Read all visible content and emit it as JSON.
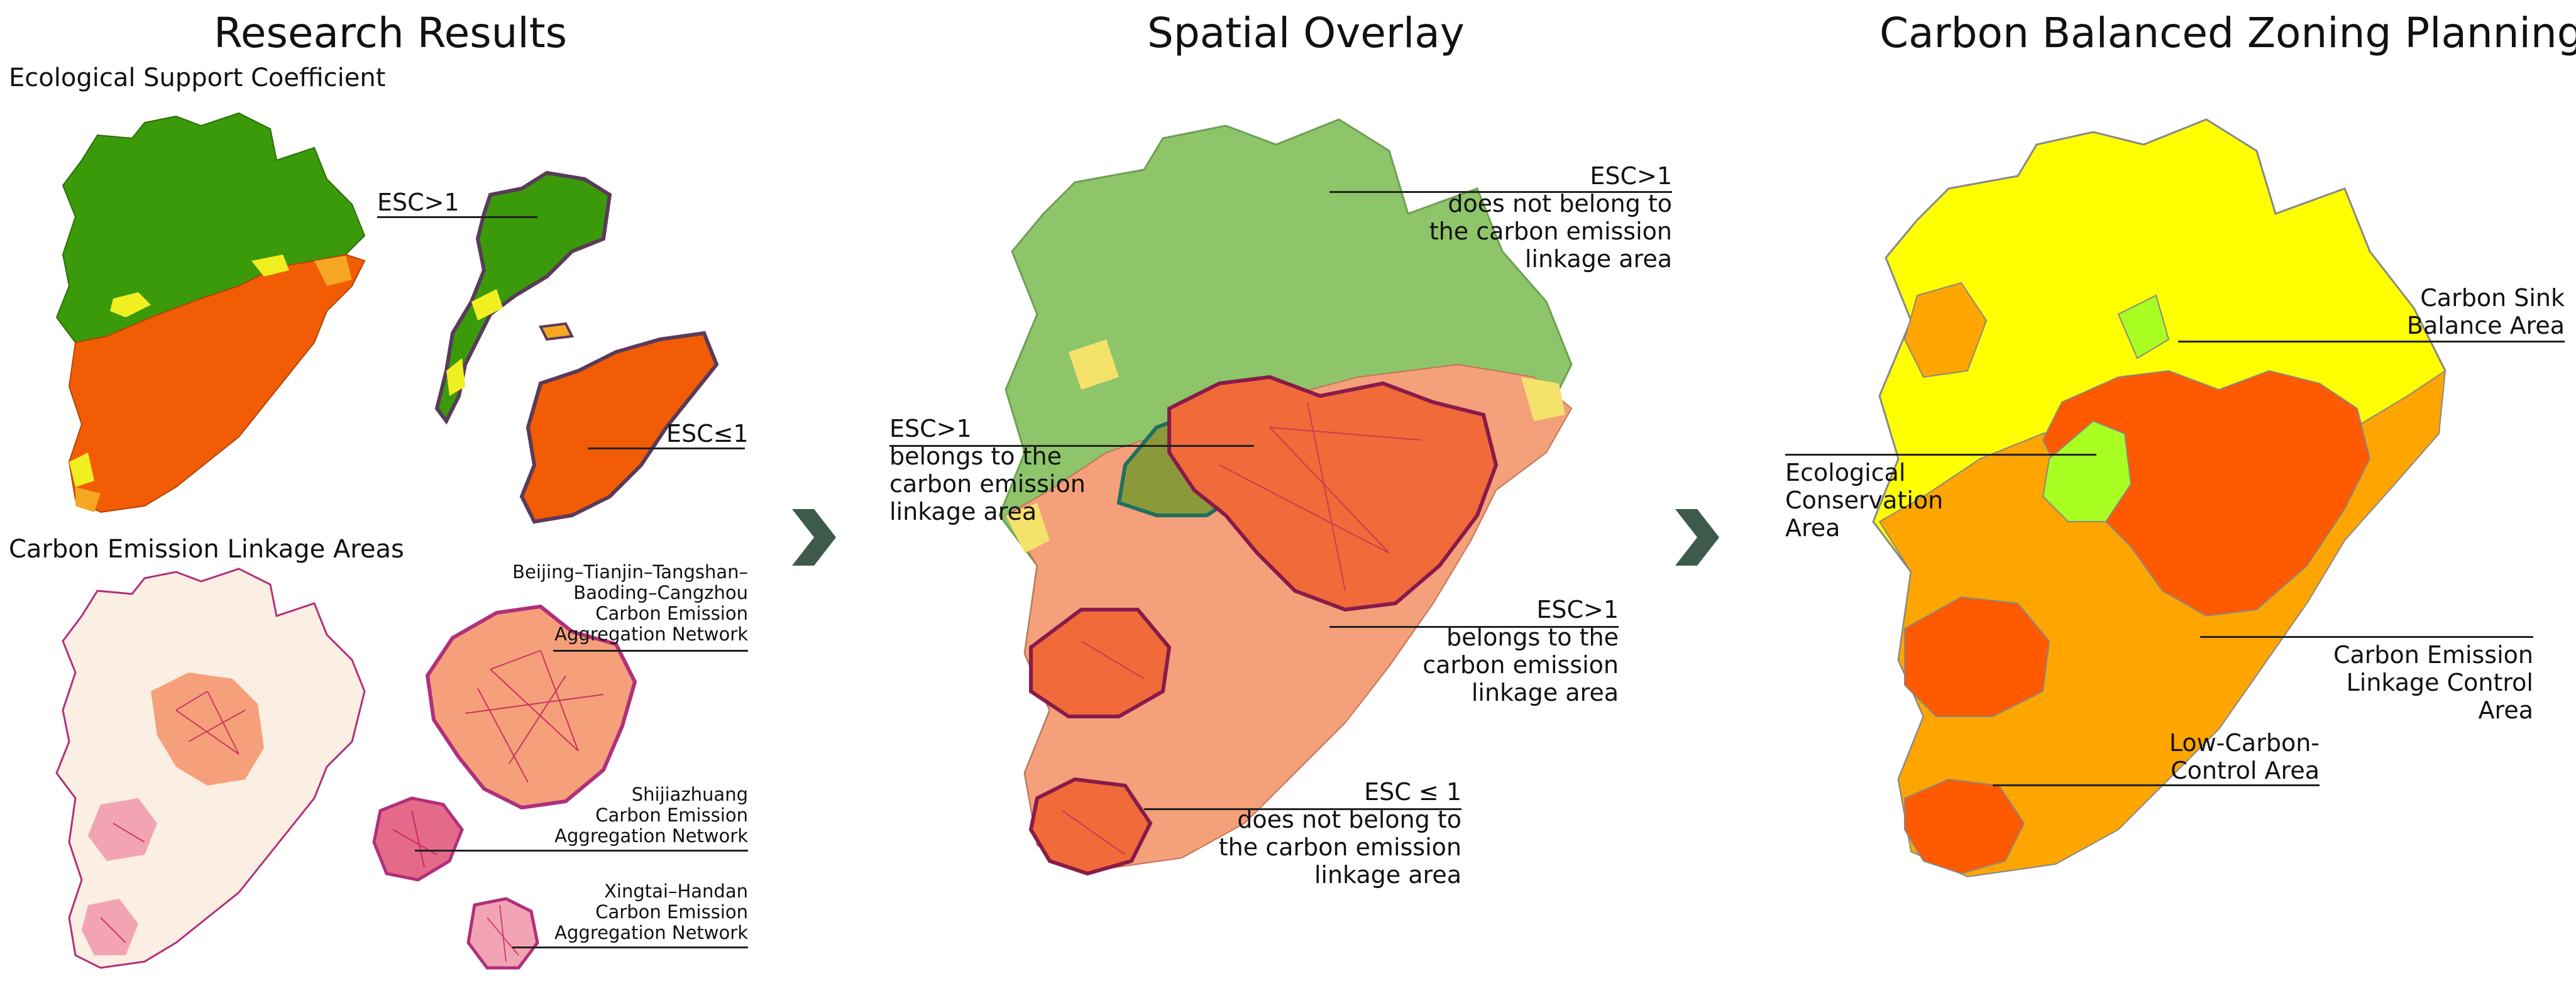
{
  "panels": {
    "left": {
      "title": "Research Results",
      "esc_heading": "Ecological Support Coefficient",
      "linkage_heading": "Carbon Emission Linkage Areas",
      "labels": {
        "esc_gt1": "ESC>1",
        "esc_le1": "ESC≤1",
        "btt_network": [
          "Beijing–Tianjin–Tangshan–",
          "Baoding–Cangzhou",
          "Carbon Emission",
          "Aggregation Network"
        ],
        "sjz_network": [
          "Shijiazhuang",
          "Carbon Emission",
          "Aggregation Network"
        ],
        "xh_network": [
          "Xingtai–Handan",
          "Carbon Emission",
          "Aggregation Network"
        ]
      }
    },
    "middle": {
      "title": "Spatial Overlay",
      "labels": {
        "top": [
          "ESC>1",
          "does not belong to",
          "the carbon emission",
          "linkage area"
        ],
        "left": [
          "ESC>1",
          "belongs to the",
          "carbon emission",
          "linkage area"
        ],
        "right": [
          "ESC>1",
          "belongs to the",
          "carbon emission",
          "linkage area"
        ],
        "bottom": [
          "ESC ≤ 1",
          "does not belong to",
          "the carbon emission",
          "linkage area"
        ]
      }
    },
    "right": {
      "title": "Carbon Balanced Zoning Planning",
      "labels": {
        "sink": [
          "Carbon Sink",
          "Balance Area"
        ],
        "eco": [
          "Ecological",
          "Conservation",
          "Area"
        ],
        "linkage_control": [
          "Carbon Emission",
          "Linkage Control",
          "Area"
        ],
        "low_carbon": [
          "Low-Carbon-",
          "Control Area"
        ]
      }
    }
  },
  "colors": {
    "esc_high": "#3a9a0a",
    "esc_low": "#f25c05",
    "esc_mid": "#f0f020",
    "esc_orange": "#f5a623",
    "linkage_light": "#fbeee2",
    "linkage_pink": "#f2a4b4",
    "linkage_salmon": "#f5a07a",
    "network_line": "#c2185b",
    "overlay_green": "#8ec46a",
    "overlay_olive": "#8a9a3a",
    "overlay_salmon": "#f4a07a",
    "overlay_red": "#f06a3a",
    "overlay_yellow": "#f5e26a",
    "zone_yellow": "#ffff00",
    "zone_orange": "#ffa500",
    "zone_red": "#ff5a00",
    "zone_lime": "#aaff22",
    "arrow": "#3e5a4a"
  },
  "icons": {
    "arrow": "chevron-right-icon"
  }
}
